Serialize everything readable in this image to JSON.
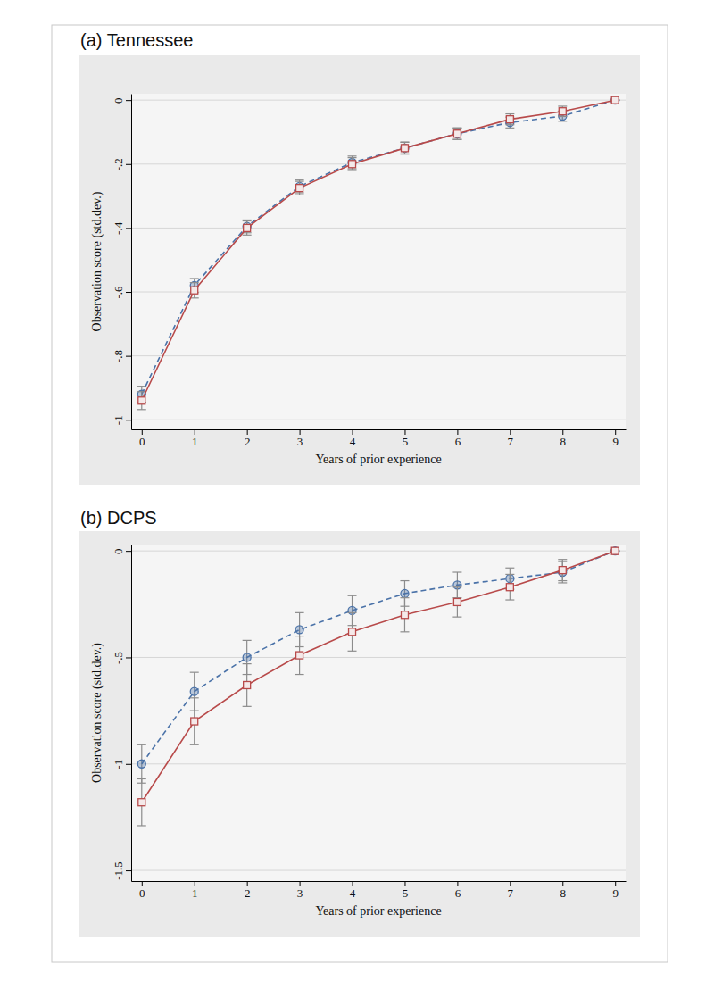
{
  "chart_data": [
    {
      "type": "line",
      "title": "(a) Tennessee",
      "x_label": "Years of prior experience",
      "y_label": "Observation score (std.dev.)",
      "x": [
        0,
        1,
        2,
        3,
        4,
        5,
        6,
        7,
        8,
        9
      ],
      "xlim": [
        -0.2,
        9.2
      ],
      "xticks": [
        0,
        1,
        2,
        3,
        4,
        5,
        6,
        7,
        8,
        9
      ],
      "ylim": [
        -1.03,
        0.02
      ],
      "yticks": [
        -1,
        {
          "value": -0.8,
          "label": "-.8"
        },
        {
          "value": -0.6,
          "label": "-.6"
        },
        {
          "value": -0.4,
          "label": "-.4"
        },
        {
          "value": -0.2,
          "label": "-.2"
        },
        0
      ],
      "grid": true,
      "series": [
        {
          "color": "#4a72a8",
          "marker": "circle",
          "line_style": "dashed",
          "values": [
            -0.92,
            -0.58,
            -0.395,
            -0.27,
            -0.195,
            -0.15,
            -0.105,
            -0.07,
            -0.05,
            0
          ],
          "errors": [
            0.025,
            0.022,
            0.02,
            0.02,
            0.02,
            0.018,
            0.018,
            0.017,
            0.016,
            0
          ]
        },
        {
          "color": "#b84a4a",
          "marker": "square",
          "line_style": "solid",
          "values": [
            -0.94,
            -0.595,
            -0.4,
            -0.275,
            -0.2,
            -0.15,
            -0.105,
            -0.06,
            -0.035,
            0
          ],
          "errors": [
            0.028,
            0.024,
            0.022,
            0.021,
            0.02,
            0.019,
            0.018,
            0.017,
            0.016,
            0
          ]
        }
      ]
    },
    {
      "type": "line",
      "title": "(b) DCPS",
      "x_label": "Years of prior experience",
      "y_label": "Observation score (std.dev.)",
      "x": [
        0,
        1,
        2,
        3,
        4,
        5,
        6,
        7,
        8,
        9
      ],
      "xlim": [
        -0.2,
        9.2
      ],
      "xticks": [
        0,
        1,
        2,
        3,
        4,
        5,
        6,
        7,
        8,
        9
      ],
      "ylim": [
        -1.55,
        0.03
      ],
      "yticks": [
        -1.5,
        -1,
        {
          "value": -0.5,
          "label": "-.5"
        },
        0
      ],
      "grid": true,
      "series": [
        {
          "color": "#4a72a8",
          "marker": "circle",
          "line_style": "dashed",
          "values": [
            -1.0,
            -0.66,
            -0.5,
            -0.37,
            -0.28,
            -0.2,
            -0.16,
            -0.13,
            -0.1,
            0
          ],
          "errors": [
            0.09,
            0.09,
            0.08,
            0.08,
            0.07,
            0.06,
            0.06,
            0.05,
            0.05,
            0
          ]
        },
        {
          "color": "#b84a4a",
          "marker": "square",
          "line_style": "solid",
          "values": [
            -1.18,
            -0.8,
            -0.63,
            -0.49,
            -0.38,
            -0.3,
            -0.24,
            -0.17,
            -0.09,
            0
          ],
          "errors": [
            0.11,
            0.11,
            0.1,
            0.09,
            0.09,
            0.08,
            0.07,
            0.06,
            0.05,
            0
          ]
        }
      ]
    }
  ]
}
